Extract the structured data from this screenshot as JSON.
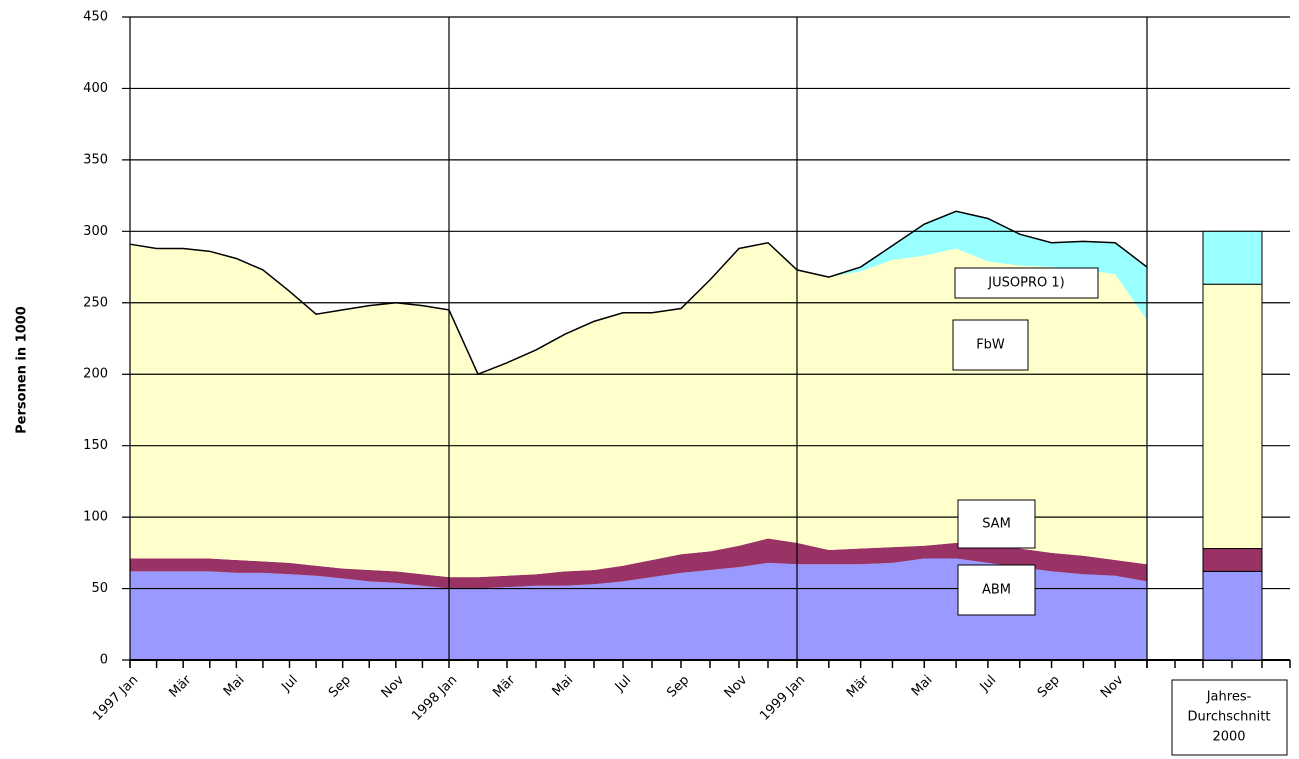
{
  "chart_data": {
    "type": "area",
    "y_label": "Personen in 1000",
    "categories": [
      "1997 Jan",
      null,
      "Mär",
      null,
      "Mai",
      null,
      "Jul",
      null,
      "Sep",
      null,
      "Nov",
      null,
      "1998 Jan",
      null,
      "Mär",
      null,
      "Mai",
      null,
      "Jul",
      null,
      "Sep",
      null,
      "Nov",
      null,
      "1999 Jan",
      null,
      "Mär",
      null,
      "Mai",
      null,
      "Jul",
      null,
      "Sep",
      null,
      "Nov",
      null
    ],
    "series": [
      {
        "name": "ABM",
        "color": "#9999ff",
        "values": [
          62,
          62,
          62,
          62,
          61,
          61,
          60,
          59,
          57,
          55,
          54,
          52,
          50,
          50,
          51,
          52,
          52,
          53,
          55,
          58,
          61,
          63,
          65,
          68,
          67,
          67,
          67,
          68,
          71,
          71,
          68,
          65,
          62,
          60,
          59,
          55
        ]
      },
      {
        "name": "SAM",
        "color": "#993366",
        "values": [
          9,
          9,
          9,
          9,
          9,
          8,
          8,
          7,
          7,
          8,
          8,
          8,
          8,
          8,
          8,
          8,
          10,
          10,
          11,
          12,
          13,
          13,
          15,
          17,
          15,
          10,
          11,
          11,
          9,
          11,
          13,
          13,
          13,
          13,
          11,
          12
        ]
      },
      {
        "name": "FbW",
        "color": "#ffffcc",
        "values": [
          220,
          217,
          217,
          215,
          211,
          204,
          190,
          176,
          181,
          185,
          188,
          188,
          187,
          142,
          149,
          157,
          166,
          174,
          177,
          173,
          172,
          190,
          208,
          207,
          191,
          191,
          194,
          201,
          203,
          206,
          198,
          198,
          200,
          200,
          200,
          171
        ]
      },
      {
        "name": "JUSOPRO 1)",
        "color": "#99ffff",
        "values": [
          0,
          0,
          0,
          0,
          0,
          0,
          0,
          0,
          0,
          0,
          0,
          0,
          0,
          0,
          0,
          0,
          0,
          0,
          0,
          0,
          0,
          0,
          0,
          0,
          0,
          0,
          3,
          10,
          22,
          26,
          30,
          22,
          17,
          20,
          22,
          37
        ]
      }
    ],
    "average": {
      "label": [
        "Jahres-",
        "Durchschnitt",
        "2000"
      ],
      "values": [
        62,
        16,
        185,
        37
      ]
    },
    "ylim": [
      0,
      450
    ],
    "yticks": [
      0,
      50,
      100,
      150,
      200,
      250,
      300,
      350,
      400,
      450
    ],
    "grid": true
  }
}
